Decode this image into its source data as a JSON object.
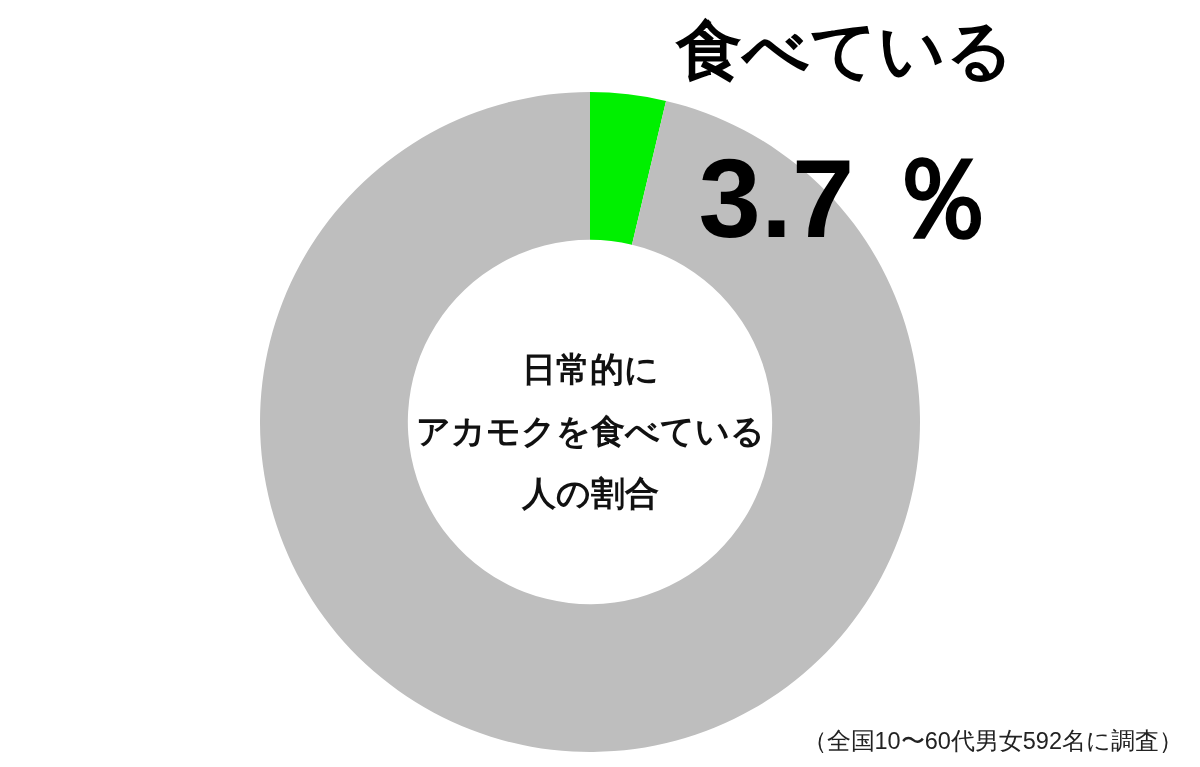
{
  "chart_data": {
    "type": "donut",
    "title": "日常的にアカモクを食べている人の割合",
    "categories": [
      "食べている",
      null
    ],
    "values": [
      3.7,
      96.3
    ],
    "colors": [
      "#00f000",
      "#bebebe"
    ],
    "value_labels": [
      "3.7 ％",
      null
    ],
    "annotations": [
      "（全国10〜60代男女592名に調査）"
    ]
  }
}
